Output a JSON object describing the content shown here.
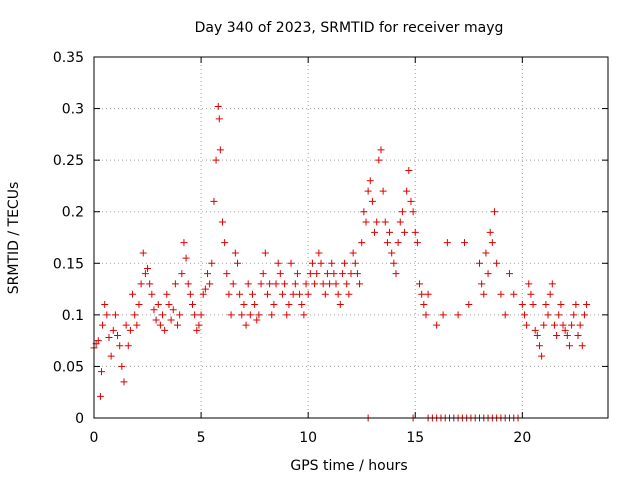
{
  "chart_data": {
    "type": "scatter",
    "title": "Day 340 of 2023, SRMTID for receiver mayg",
    "xlabel": "GPS time / hours",
    "ylabel": "SRMTID / TECUs",
    "xlim": [
      0,
      24
    ],
    "ylim": [
      0,
      0.35
    ],
    "xticks": [
      0,
      5,
      10,
      15,
      20
    ],
    "xtick_labels": [
      "0",
      "5",
      "10",
      "15",
      "20"
    ],
    "yticks": [
      0,
      0.05,
      0.1,
      0.15,
      0.2,
      0.25,
      0.3,
      0.35
    ],
    "ytick_labels": [
      "0",
      "0.05",
      "0.1",
      "0.15",
      "0.2",
      "0.25",
      "0.3",
      "0.35"
    ],
    "grid": true,
    "marker": "plus",
    "series": [
      {
        "name": "SRMTID",
        "color": "#e00000",
        "x": [
          0.0,
          0.1,
          0.2,
          0.3,
          0.35,
          0.4,
          0.5,
          0.6,
          0.7,
          0.8,
          0.9,
          1.0,
          1.1,
          1.2,
          1.3,
          1.4,
          1.5,
          1.6,
          1.7,
          1.8,
          1.9,
          2.0,
          2.1,
          2.2,
          2.3,
          2.4,
          2.5,
          2.6,
          2.7,
          2.8,
          2.9,
          3.0,
          3.1,
          3.2,
          3.3,
          3.4,
          3.5,
          3.6,
          3.7,
          3.8,
          3.9,
          4.0,
          4.1,
          4.2,
          4.3,
          4.4,
          4.5,
          4.6,
          4.7,
          4.8,
          4.9,
          5.0,
          5.1,
          5.2,
          5.3,
          5.4,
          5.5,
          5.6,
          5.7,
          5.8,
          5.85,
          5.9,
          6.0,
          6.1,
          6.2,
          6.3,
          6.4,
          6.5,
          6.6,
          6.7,
          6.8,
          6.9,
          7.0,
          7.1,
          7.2,
          7.3,
          7.4,
          7.5,
          7.6,
          7.7,
          7.8,
          7.9,
          8.0,
          8.1,
          8.2,
          8.3,
          8.4,
          8.5,
          8.6,
          8.7,
          8.8,
          8.9,
          9.0,
          9.1,
          9.2,
          9.3,
          9.4,
          9.5,
          9.6,
          9.7,
          9.8,
          9.9,
          10.0,
          10.1,
          10.2,
          10.3,
          10.4,
          10.5,
          10.6,
          10.7,
          10.8,
          10.9,
          11.0,
          11.1,
          11.2,
          11.3,
          11.4,
          11.5,
          11.6,
          11.7,
          11.8,
          11.9,
          12.0,
          12.1,
          12.2,
          12.3,
          12.4,
          12.5,
          12.6,
          12.7,
          12.8,
          12.9,
          13.0,
          13.1,
          13.2,
          13.3,
          13.4,
          13.5,
          13.6,
          13.7,
          13.8,
          13.9,
          14.0,
          14.1,
          14.2,
          14.3,
          14.4,
          14.5,
          14.6,
          14.7,
          14.8,
          14.9,
          15.0,
          15.1,
          15.2,
          15.3,
          15.4,
          15.5,
          15.6,
          16.0,
          16.3,
          16.5,
          17.0,
          17.3,
          17.5,
          18.0,
          18.1,
          18.2,
          18.3,
          18.4,
          18.5,
          18.6,
          18.7,
          18.8,
          19.0,
          19.2,
          19.4,
          19.6,
          20.0,
          20.1,
          20.2,
          20.3,
          20.4,
          20.5,
          20.6,
          20.7,
          20.8,
          20.9,
          21.0,
          21.1,
          21.2,
          21.3,
          21.4,
          21.5,
          21.6,
          21.7,
          21.8,
          21.9,
          22.0,
          22.1,
          22.2,
          22.3,
          22.4,
          22.5,
          22.6,
          22.7,
          22.8,
          22.9,
          23.0,
          12.8,
          14.9,
          15.6,
          15.8,
          16.0,
          16.2,
          16.4,
          16.6,
          16.8,
          17.0,
          17.2,
          17.4,
          17.6,
          17.8,
          18.0,
          18.2,
          18.4,
          18.6,
          18.8,
          19.0,
          19.2,
          19.4,
          19.6,
          19.8
        ],
        "y": [
          0.068,
          0.072,
          0.075,
          0.021,
          0.045,
          0.09,
          0.11,
          0.1,
          0.078,
          0.06,
          0.085,
          0.1,
          0.08,
          0.07,
          0.05,
          0.035,
          0.09,
          0.07,
          0.085,
          0.12,
          0.1,
          0.09,
          0.11,
          0.13,
          0.16,
          0.14,
          0.145,
          0.13,
          0.12,
          0.105,
          0.095,
          0.11,
          0.09,
          0.1,
          0.085,
          0.12,
          0.11,
          0.095,
          0.105,
          0.13,
          0.09,
          0.1,
          0.14,
          0.17,
          0.155,
          0.13,
          0.12,
          0.11,
          0.1,
          0.085,
          0.09,
          0.1,
          0.12,
          0.125,
          0.14,
          0.13,
          0.15,
          0.21,
          0.25,
          0.302,
          0.29,
          0.26,
          0.19,
          0.17,
          0.14,
          0.12,
          0.1,
          0.13,
          0.16,
          0.15,
          0.12,
          0.1,
          0.11,
          0.09,
          0.13,
          0.1,
          0.12,
          0.11,
          0.095,
          0.1,
          0.13,
          0.14,
          0.16,
          0.12,
          0.13,
          0.1,
          0.11,
          0.13,
          0.15,
          0.14,
          0.12,
          0.13,
          0.1,
          0.11,
          0.15,
          0.12,
          0.13,
          0.14,
          0.12,
          0.11,
          0.1,
          0.13,
          0.12,
          0.14,
          0.15,
          0.13,
          0.14,
          0.16,
          0.15,
          0.13,
          0.12,
          0.14,
          0.13,
          0.15,
          0.14,
          0.13,
          0.12,
          0.11,
          0.14,
          0.15,
          0.13,
          0.12,
          0.14,
          0.16,
          0.15,
          0.14,
          0.13,
          0.17,
          0.2,
          0.19,
          0.22,
          0.23,
          0.21,
          0.18,
          0.19,
          0.25,
          0.26,
          0.22,
          0.19,
          0.17,
          0.18,
          0.16,
          0.15,
          0.14,
          0.17,
          0.19,
          0.2,
          0.18,
          0.22,
          0.24,
          0.21,
          0.2,
          0.18,
          0.17,
          0.13,
          0.12,
          0.11,
          0.1,
          0.12,
          0.09,
          0.1,
          0.17,
          0.1,
          0.17,
          0.11,
          0.15,
          0.13,
          0.12,
          0.16,
          0.14,
          0.18,
          0.17,
          0.2,
          0.15,
          0.12,
          0.1,
          0.14,
          0.12,
          0.11,
          0.1,
          0.09,
          0.13,
          0.12,
          0.11,
          0.085,
          0.08,
          0.07,
          0.06,
          0.09,
          0.11,
          0.1,
          0.12,
          0.13,
          0.09,
          0.08,
          0.1,
          0.11,
          0.09,
          0.085,
          0.08,
          0.07,
          0.09,
          0.1,
          0.11,
          0.08,
          0.09,
          0.07,
          0.1,
          0.11,
          0.0,
          0.0,
          0.0,
          0.0,
          0.0,
          0.0,
          0.0,
          0.0,
          0.0,
          0.0,
          0.0,
          0.0,
          0.0,
          0.0,
          0.0,
          0.0,
          0.0,
          0.0,
          0.0,
          0.0,
          0.0,
          0.0,
          0.0,
          0.0
        ]
      }
    ]
  }
}
